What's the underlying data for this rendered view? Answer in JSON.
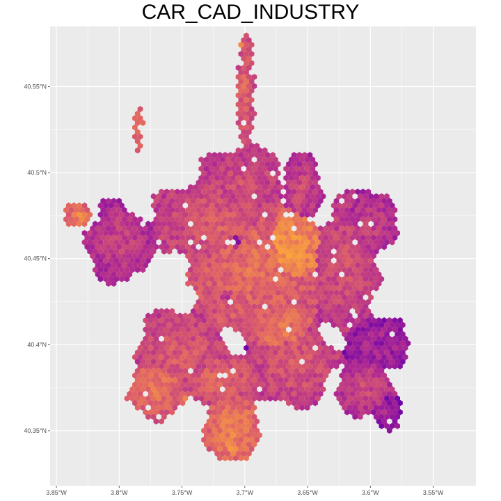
{
  "title": "CAR_CAD_INDUSTRY",
  "map": {
    "type": "hexbin",
    "projection": "lon-lat",
    "panel_background": "#EBEBEB",
    "gridline_color": "#FFFFFF",
    "grid": true,
    "legend": "none",
    "color_scale": "plasma",
    "x_axis": {
      "range": [
        -3.855,
        -3.516
      ],
      "ticks": [
        -3.85,
        -3.8,
        -3.75,
        -3.7,
        -3.65,
        -3.6,
        -3.55
      ],
      "tick_labels": [
        "3.85°W",
        "3.8°W",
        "3.75°W",
        "3.7°W",
        "3.65°W",
        "3.6°W",
        "3.55°W"
      ]
    },
    "y_axis": {
      "range": [
        40.318,
        40.585
      ],
      "ticks": [
        40.35,
        40.4,
        40.45,
        40.5,
        40.55
      ],
      "tick_labels": [
        "40.35°N",
        "40.4°N",
        "40.45°N",
        "40.5°N",
        "40.55°N"
      ]
    },
    "palette_stops": [
      "#0D0887",
      "#6A00A8",
      "#B12A90",
      "#E16462",
      "#FCA636",
      "#F0F921"
    ],
    "value_range": [
      0,
      1
    ],
    "clusters": [
      {
        "lon": -3.69,
        "lat": 40.445,
        "rx": 0.058,
        "ry": 0.045,
        "level": 0.64
      },
      {
        "lon": -3.665,
        "lat": 40.455,
        "rx": 0.03,
        "ry": 0.03,
        "level": 0.75
      },
      {
        "lon": -3.72,
        "lat": 40.47,
        "rx": 0.05,
        "ry": 0.03,
        "level": 0.58
      },
      {
        "lon": -3.7,
        "lat": 40.495,
        "rx": 0.035,
        "ry": 0.02,
        "level": 0.55
      },
      {
        "lon": -3.655,
        "lat": 40.49,
        "rx": 0.018,
        "ry": 0.02,
        "level": 0.52
      },
      {
        "lon": -3.62,
        "lat": 40.445,
        "rx": 0.03,
        "ry": 0.04,
        "level": 0.55
      },
      {
        "lon": -3.6,
        "lat": 40.47,
        "rx": 0.02,
        "ry": 0.02,
        "level": 0.5
      },
      {
        "lon": -3.595,
        "lat": 40.4,
        "rx": 0.025,
        "ry": 0.015,
        "level": 0.42
      },
      {
        "lon": -3.75,
        "lat": 40.395,
        "rx": 0.04,
        "ry": 0.025,
        "level": 0.58
      },
      {
        "lon": -3.77,
        "lat": 40.375,
        "rx": 0.025,
        "ry": 0.02,
        "level": 0.66
      },
      {
        "lon": -3.72,
        "lat": 40.38,
        "rx": 0.03,
        "ry": 0.015,
        "level": 0.62
      },
      {
        "lon": -3.71,
        "lat": 40.35,
        "rx": 0.02,
        "ry": 0.022,
        "level": 0.7
      },
      {
        "lon": -3.66,
        "lat": 40.39,
        "rx": 0.035,
        "ry": 0.025,
        "level": 0.58
      },
      {
        "lon": -3.605,
        "lat": 40.375,
        "rx": 0.022,
        "ry": 0.018,
        "level": 0.52
      },
      {
        "lon": -3.588,
        "lat": 40.36,
        "rx": 0.012,
        "ry": 0.01,
        "level": 0.4
      },
      {
        "lon": -3.8,
        "lat": 40.46,
        "rx": 0.03,
        "ry": 0.022,
        "level": 0.5
      },
      {
        "lon": -3.832,
        "lat": 40.475,
        "rx": 0.012,
        "ry": 0.008,
        "level": 0.7
      },
      {
        "lon": -3.7,
        "lat": 40.545,
        "rx": 0.007,
        "ry": 0.035,
        "level": 0.62
      },
      {
        "lon": -3.785,
        "lat": 40.525,
        "rx": 0.004,
        "ry": 0.016,
        "level": 0.68
      },
      {
        "lon": -3.67,
        "lat": 40.41,
        "rx": 0.025,
        "ry": 0.018,
        "level": 0.68
      }
    ],
    "hotspots": [
      {
        "lon": -3.7075,
        "lat": 40.46,
        "value": 0.02
      },
      {
        "lon": -3.7,
        "lat": 40.398,
        "value": 0.12
      },
      {
        "lon": -3.594,
        "lat": 40.4,
        "value": 0.22
      },
      {
        "lon": -3.59,
        "lat": 40.402,
        "value": 0.25
      },
      {
        "lon": -3.715,
        "lat": 40.428,
        "value": 0.32
      },
      {
        "lon": -3.706,
        "lat": 40.577,
        "value": 0.97
      },
      {
        "lon": -3.707,
        "lat": 40.574,
        "value": 0.95
      },
      {
        "lon": -3.745,
        "lat": 40.368,
        "value": 0.85
      },
      {
        "lon": -3.71,
        "lat": 40.34,
        "value": 0.8
      },
      {
        "lon": -3.67,
        "lat": 40.455,
        "value": 0.82
      },
      {
        "lon": -3.645,
        "lat": 40.34,
        "value": 0.4
      },
      {
        "lon": -3.67,
        "lat": 40.345,
        "value": 0.38
      },
      {
        "lon": -3.55,
        "lat": 40.356,
        "value": 0.6
      },
      {
        "lon": -3.58,
        "lat": 40.404,
        "value": 0.35
      }
    ]
  }
}
